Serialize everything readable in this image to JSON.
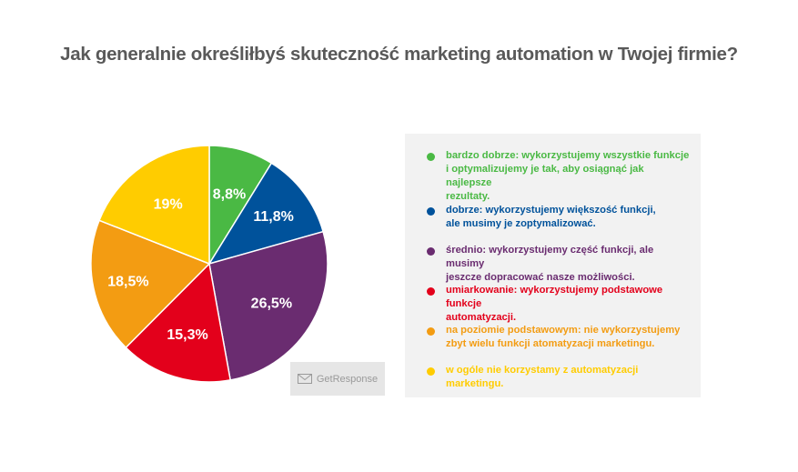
{
  "title": "Jak generalnie określiłbyś skuteczność marketing automation w Twojej firmie?",
  "logo": {
    "text": "GetResponse",
    "icon": "envelope-icon"
  },
  "colors": {
    "green": "#4ab944",
    "blue": "#00529b",
    "purple": "#6a2c70",
    "red": "#e3001b",
    "orange": "#f39c12",
    "yellow": "#ffcc00"
  },
  "chart_data": {
    "type": "pie",
    "title": "Jak generalnie określiłbyś skuteczność marketing automation w Twojej firmie?",
    "slices": [
      {
        "label": "bardzo dobrze: wykorzystujemy wszystkie funkcje\ni optymalizujemy je tak, aby osiągnąć jak najlepsze\nrezultaty.",
        "value": 8.8,
        "display": "8,8%",
        "color": "#4ab944"
      },
      {
        "label": "dobrze: wykorzystujemy większość funkcji,\nale musimy je zoptymalizować.",
        "value": 11.8,
        "display": "11,8%",
        "color": "#00529b"
      },
      {
        "label": "średnio: wykorzystujemy część funkcji, ale musimy\njeszcze dopracować nasze możliwości.",
        "value": 26.5,
        "display": "26,5%",
        "color": "#6a2c70"
      },
      {
        "label": "umiarkowanie: wykorzystujemy podstawowe funkcje\nautomatyzacji.",
        "value": 15.3,
        "display": "15,3%",
        "color": "#e3001b"
      },
      {
        "label": "na poziomie podstawowym: nie wykorzystujemy\nzbyt wielu funkcji atomatyzacji marketingu.",
        "value": 18.5,
        "display": "18,5%",
        "color": "#f39c12"
      },
      {
        "label": "w ogóle nie korzystamy z automatyzacji marketingu.",
        "value": 19,
        "display": "19%",
        "color": "#ffcc00"
      }
    ],
    "legend_position": "right"
  }
}
